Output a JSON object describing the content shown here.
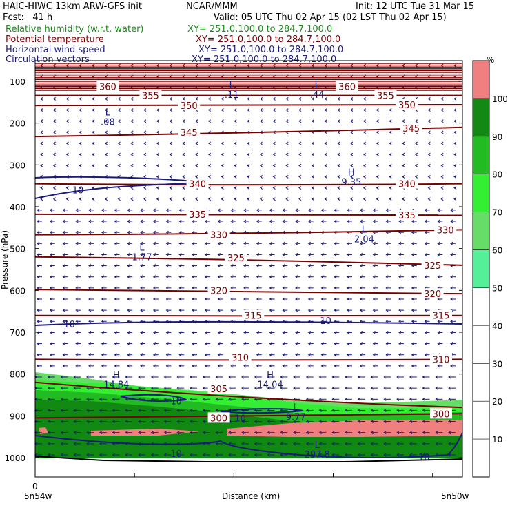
{
  "header": {
    "title_left": "HAIC-HIWC 13km ARW-GFS init",
    "title_center": "NCAR/MMM",
    "init": "Init: 12 UTC Tue 31 Mar 15",
    "fcst": "Fcst:   41 h",
    "valid": "Valid: 05 UTC Thu 02 Apr 15 (02 LST Thu 02 Apr 15)"
  },
  "legend": [
    {
      "name": "Relative humidity (w.r.t. water)",
      "xy": "XY= 251.0,100.0 to 284.7,100.0",
      "color": "#1a8a1a"
    },
    {
      "name": "Potential temperature",
      "xy": "XY= 251.0,100.0 to 284.7,100.0",
      "color": "#7a0000"
    },
    {
      "name": "Horizontal wind speed",
      "xy": "XY= 251.0,100.0 to 284.7,100.0",
      "color": "#1a1a7a"
    },
    {
      "name": "Circulation vectors",
      "xy": "XY= 251.0,100.0 to 284.7,100.0",
      "color": "#1a1a7a"
    }
  ],
  "colorbar": {
    "unit": "%",
    "levels": [
      "10",
      "20",
      "30",
      "40",
      "50",
      "60",
      "70",
      "80",
      "90",
      "100"
    ],
    "colors": [
      "#ffffff",
      "#ffffff",
      "#ffffff",
      "#ffffff",
      "#ffffff",
      "#55ee99",
      "#66dd66",
      "#33ee33",
      "#22bb22",
      "#118811",
      "#f08080"
    ]
  },
  "chart_data": {
    "type": "contour",
    "ylabel": "Pressure (hPa)",
    "xlabel": "Distance (km)",
    "x_start_label": "5n54w",
    "x_end_label": "5n50w",
    "x_zero_label": "0",
    "yticks": [
      100,
      200,
      300,
      400,
      500,
      600,
      700,
      800,
      900,
      1000
    ],
    "ylim": [
      1050,
      70
    ],
    "theta_contours": [
      {
        "label": "360",
        "p": [
          112,
          112,
          112
        ]
      },
      {
        "label": "355",
        "p": [
          134,
          134,
          134
        ]
      },
      {
        "label": "350",
        "p": [
          158,
          158,
          156
        ]
      },
      {
        "label": "345",
        "p": [
          232,
          224,
          210
        ]
      },
      {
        "label": "340",
        "p": [
          345,
          350,
          345
        ]
      },
      {
        "label": "335",
        "p": [
          418,
          420,
          420
        ]
      },
      {
        "label": "330",
        "p": [
          467,
          465,
          455
        ]
      },
      {
        "label": "325",
        "p": [
          520,
          525,
          540
        ]
      },
      {
        "label": "320",
        "p": [
          598,
          605,
          608
        ]
      },
      {
        "label": "315",
        "p": [
          660,
          662,
          660
        ]
      },
      {
        "label": "310",
        "p": [
          765,
          768,
          765
        ]
      },
      {
        "label": "305",
        "p": [
          820,
          862,
          880
        ]
      },
      {
        "label": "300",
        "p": [
          905,
          900,
          895
        ]
      }
    ],
    "theta_labels": [
      {
        "text": "360",
        "x": 0.17,
        "p": 112
      },
      {
        "text": "355",
        "x": 0.27,
        "p": 134
      },
      {
        "text": "350",
        "x": 0.36,
        "p": 158
      },
      {
        "text": "345",
        "x": 0.36,
        "p": 222
      },
      {
        "text": "340",
        "x": 0.38,
        "p": 345
      },
      {
        "text": "335",
        "x": 0.38,
        "p": 418
      },
      {
        "text": "330",
        "x": 0.43,
        "p": 467
      },
      {
        "text": "325",
        "x": 0.47,
        "p": 522
      },
      {
        "text": "320",
        "x": 0.43,
        "p": 600
      },
      {
        "text": "315",
        "x": 0.51,
        "p": 660
      },
      {
        "text": "310",
        "x": 0.48,
        "p": 760
      },
      {
        "text": "305",
        "x": 0.43,
        "p": 835
      },
      {
        "text": "300",
        "x": 0.43,
        "p": 905
      },
      {
        "text": "360",
        "x": 0.73,
        "p": 112
      },
      {
        "text": "355",
        "x": 0.82,
        "p": 134
      },
      {
        "text": "350",
        "x": 0.87,
        "p": 156
      },
      {
        "text": "345",
        "x": 0.88,
        "p": 212
      },
      {
        "text": "340",
        "x": 0.87,
        "p": 345
      },
      {
        "text": "335",
        "x": 0.87,
        "p": 420
      },
      {
        "text": "330",
        "x": 0.96,
        "p": 455
      },
      {
        "text": "325",
        "x": 0.93,
        "p": 540
      },
      {
        "text": "320",
        "x": 0.93,
        "p": 608
      },
      {
        "text": "315",
        "x": 0.95,
        "p": 660
      },
      {
        "text": "310",
        "x": 0.95,
        "p": 765
      },
      {
        "text": "300",
        "x": 0.95,
        "p": 895
      }
    ],
    "extrema": [
      {
        "type": "L",
        "value": ".08",
        "x": 0.17,
        "p": 185
      },
      {
        "type": "L",
        "value": ".11",
        "x": 0.46,
        "p": 120
      },
      {
        "type": "L",
        "value": ".44",
        "x": 0.66,
        "p": 120
      },
      {
        "type": "H",
        "value": "9.35",
        "x": 0.74,
        "p": 328
      },
      {
        "type": "L",
        "value": "2.04",
        "x": 0.77,
        "p": 465
      },
      {
        "type": "L",
        "value": "1.77",
        "x": 0.25,
        "p": 508
      },
      {
        "type": "H",
        "value": "14.84",
        "x": 0.19,
        "p": 813
      },
      {
        "type": "H",
        "value": "14.04",
        "x": 0.55,
        "p": 813
      },
      {
        "type": "L",
        "value": "9.77",
        "x": 0.61,
        "p": 890
      },
      {
        "type": "L",
        "value": "297.8",
        "x": 0.66,
        "p": 980
      }
    ],
    "wind_labels": [
      {
        "text": "10",
        "x": 0.1,
        "p": 360
      },
      {
        "text": "10",
        "x": 0.08,
        "p": 680
      },
      {
        "text": "10",
        "x": 0.68,
        "p": 672
      },
      {
        "text": "10",
        "x": 0.33,
        "p": 864
      },
      {
        "text": "10",
        "x": 0.48,
        "p": 905
      },
      {
        "text": "10",
        "x": 0.33,
        "p": 990
      },
      {
        "text": "10",
        "x": 0.91,
        "p": 998
      }
    ]
  }
}
